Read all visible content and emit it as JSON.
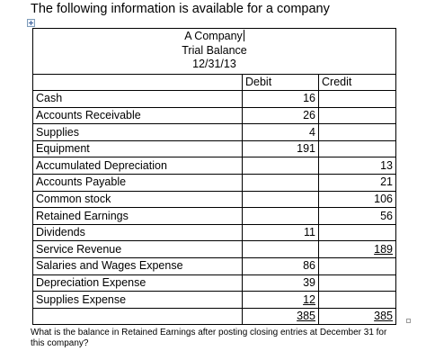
{
  "heading": "The following information is available for a company",
  "title": {
    "line1": "A Company",
    "line2": "Trial Balance",
    "line3": "12/31/13"
  },
  "columns": {
    "debit": "Debit",
    "credit": "Credit"
  },
  "rows": [
    {
      "account": "Cash",
      "debit": "16",
      "credit": ""
    },
    {
      "account": "Accounts Receivable",
      "debit": "26",
      "credit": ""
    },
    {
      "account": "Supplies",
      "debit": "4",
      "credit": ""
    },
    {
      "account": "Equipment",
      "debit": "191",
      "credit": ""
    },
    {
      "account": "Accumulated Depreciation",
      "debit": "",
      "credit": "13"
    },
    {
      "account": "Accounts Payable",
      "debit": "",
      "credit": "21"
    },
    {
      "account": "Common stock",
      "debit": "",
      "credit": "106"
    },
    {
      "account": "Retained Earnings",
      "debit": "",
      "credit": "56"
    },
    {
      "account": "Dividends",
      "debit": "11",
      "credit": ""
    },
    {
      "account": "Service Revenue",
      "debit": "",
      "credit": "189"
    },
    {
      "account": "Salaries and Wages Expense",
      "debit": "86",
      "credit": ""
    },
    {
      "account": "Depreciation Expense",
      "debit": "39",
      "credit": ""
    },
    {
      "account": "Supplies Expense",
      "debit": "12",
      "credit": ""
    }
  ],
  "totals": {
    "debit": "385",
    "credit": "385"
  },
  "question": "What is the balance in Retained Earnings after posting closing entries at December 31 for this company?"
}
